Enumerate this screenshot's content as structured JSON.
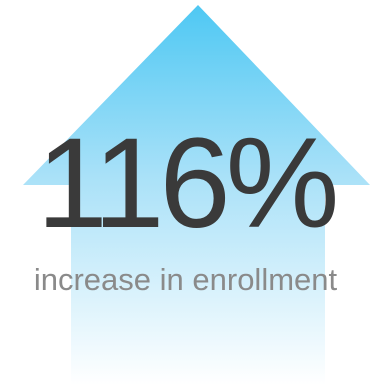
{
  "stat": {
    "value": "116%",
    "caption": "increase in enrollment"
  },
  "icon": {
    "name": "up-arrow-icon"
  },
  "colors": {
    "arrow_top": "#4ec8f3",
    "arrow_bottom": "#ffffff",
    "value_text": "#3a3a3a",
    "caption_text": "#8a8a8a"
  }
}
